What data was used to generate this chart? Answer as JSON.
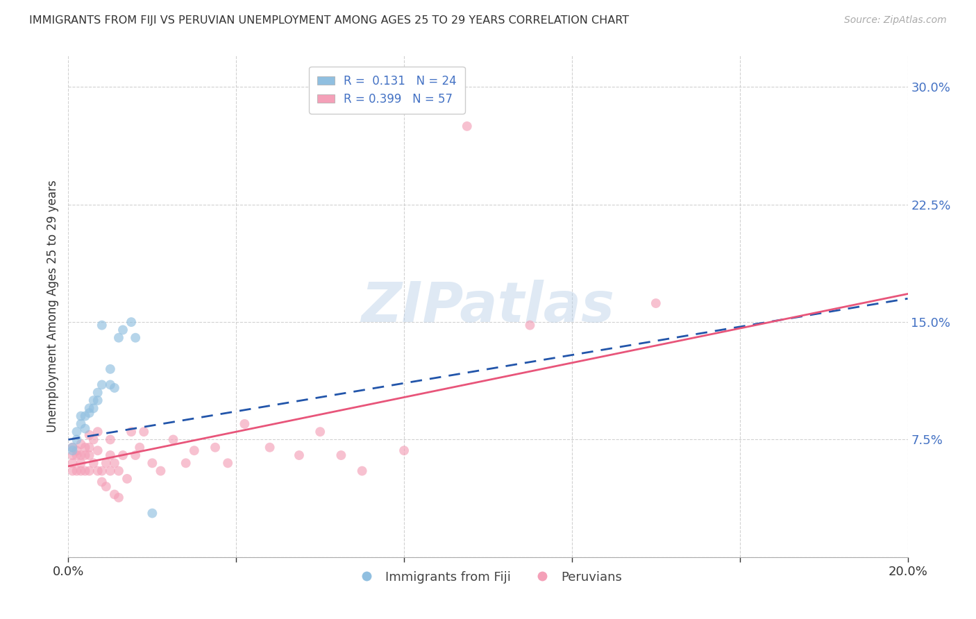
{
  "title": "IMMIGRANTS FROM FIJI VS PERUVIAN UNEMPLOYMENT AMONG AGES 25 TO 29 YEARS CORRELATION CHART",
  "source": "Source: ZipAtlas.com",
  "ylabel": "Unemployment Among Ages 25 to 29 years",
  "xlabel": "",
  "xlim": [
    0.0,
    0.2
  ],
  "ylim": [
    0.0,
    0.32
  ],
  "xticks": [
    0.0,
    0.04,
    0.08,
    0.12,
    0.16,
    0.2
  ],
  "yticks": [
    0.0,
    0.075,
    0.15,
    0.225,
    0.3
  ],
  "fiji_R": "0.131",
  "fiji_N": "24",
  "peru_R": "0.399",
  "peru_N": "57",
  "fiji_color": "#90bfe0",
  "peru_color": "#f4a0b8",
  "fiji_line_color": "#2255aa",
  "peru_line_color": "#e8557a",
  "fiji_scatter_x": [
    0.001,
    0.001,
    0.002,
    0.002,
    0.003,
    0.003,
    0.004,
    0.004,
    0.005,
    0.005,
    0.006,
    0.006,
    0.007,
    0.007,
    0.008,
    0.008,
    0.01,
    0.01,
    0.011,
    0.012,
    0.013,
    0.015,
    0.016,
    0.02
  ],
  "fiji_scatter_y": [
    0.07,
    0.068,
    0.08,
    0.075,
    0.085,
    0.09,
    0.09,
    0.082,
    0.092,
    0.095,
    0.1,
    0.095,
    0.105,
    0.1,
    0.11,
    0.148,
    0.12,
    0.11,
    0.108,
    0.14,
    0.145,
    0.15,
    0.14,
    0.028
  ],
  "peru_scatter_x": [
    0.001,
    0.001,
    0.001,
    0.001,
    0.002,
    0.002,
    0.002,
    0.003,
    0.003,
    0.003,
    0.003,
    0.004,
    0.004,
    0.004,
    0.005,
    0.005,
    0.005,
    0.005,
    0.006,
    0.006,
    0.007,
    0.007,
    0.007,
    0.008,
    0.008,
    0.009,
    0.009,
    0.01,
    0.01,
    0.01,
    0.011,
    0.011,
    0.012,
    0.012,
    0.013,
    0.014,
    0.015,
    0.016,
    0.017,
    0.018,
    0.02,
    0.022,
    0.025,
    0.028,
    0.03,
    0.035,
    0.038,
    0.042,
    0.048,
    0.055,
    0.06,
    0.065,
    0.07,
    0.08,
    0.095,
    0.11,
    0.14
  ],
  "peru_scatter_y": [
    0.07,
    0.065,
    0.06,
    0.055,
    0.068,
    0.065,
    0.055,
    0.072,
    0.065,
    0.06,
    0.055,
    0.07,
    0.065,
    0.055,
    0.078,
    0.07,
    0.065,
    0.055,
    0.075,
    0.06,
    0.08,
    0.068,
    0.055,
    0.055,
    0.048,
    0.06,
    0.045,
    0.075,
    0.065,
    0.055,
    0.06,
    0.04,
    0.055,
    0.038,
    0.065,
    0.05,
    0.08,
    0.065,
    0.07,
    0.08,
    0.06,
    0.055,
    0.075,
    0.06,
    0.068,
    0.07,
    0.06,
    0.085,
    0.07,
    0.065,
    0.08,
    0.065,
    0.055,
    0.068,
    0.275,
    0.148,
    0.162
  ],
  "fiji_line_x0": 0.0,
  "fiji_line_x1": 0.2,
  "fiji_line_y0": 0.075,
  "fiji_line_y1": 0.165,
  "peru_line_x0": 0.0,
  "peru_line_x1": 0.2,
  "peru_line_y0": 0.058,
  "peru_line_y1": 0.168,
  "background_color": "#ffffff",
  "grid_color": "#cccccc",
  "watermark_text": "ZIPatlas",
  "legend_fiji_label": "Immigrants from Fiji",
  "legend_peru_label": "Peruvians"
}
